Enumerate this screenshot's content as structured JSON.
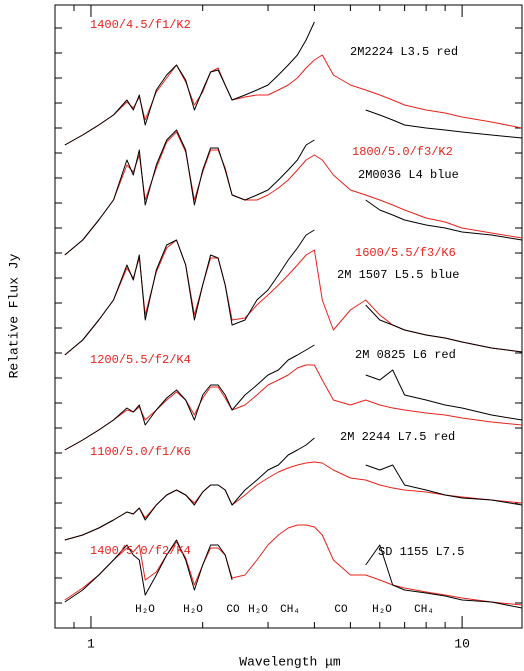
{
  "chart_data": {
    "type": "line",
    "x_label": "Wavelength μm",
    "y_label": "Relative Flux Jy",
    "xscale": "log",
    "xlim": [
      0.8,
      14.5
    ],
    "ylim": [
      0,
      623
    ],
    "xticks": [
      1,
      10
    ],
    "xminorticks": [
      0.8,
      0.9,
      2,
      3,
      4,
      5,
      6,
      7,
      8,
      9
    ],
    "yminorticks": [
      25,
      50,
      75,
      100,
      125,
      150,
      175,
      200,
      225,
      250,
      275,
      300,
      325,
      350,
      375,
      400,
      425,
      450,
      475,
      500,
      525,
      550,
      575,
      600
    ],
    "x": [
      0.85,
      0.95,
      1.05,
      1.15,
      1.25,
      1.3,
      1.35,
      1.4,
      1.5,
      1.6,
      1.7,
      1.8,
      1.9,
      2.0,
      2.1,
      2.2,
      2.3,
      2.4,
      2.6,
      2.8,
      3.0,
      3.2,
      3.4,
      3.6,
      3.8,
      4.0,
      4.2,
      4.5,
      5.0,
      5.5,
      6.0,
      6.5,
      7,
      8,
      9,
      10,
      12,
      14.5
    ],
    "series": [
      {
        "name": "1400/4.5/f1/K2",
        "color": "#e8231b",
        "values": [
          483,
          493,
          503,
          513,
          526,
          520,
          531,
          508,
          536,
          550,
          563,
          546,
          523,
          536,
          556,
          560,
          543,
          528,
          531,
          533,
          533,
          538,
          543,
          550,
          560,
          568,
          573,
          553,
          543,
          538,
          533,
          528,
          523,
          518,
          515,
          511,
          506,
          500
        ]
      },
      {
        "name": "2M2224 L3.5 red",
        "color": "#000000",
        "values": [
          483,
          493,
          503,
          513,
          528,
          518,
          533,
          503,
          538,
          553,
          563,
          548,
          518,
          538,
          556,
          558,
          543,
          528,
          533,
          538,
          543,
          553,
          563,
          573,
          588,
          606,
          null,
          null,
          null,
          518,
          513,
          508,
          503,
          500,
          498,
          496,
          493,
          490
        ]
      },
      {
        "name": "1800/5.0/f3/K2",
        "color": "#e8231b",
        "values": [
          373,
          388,
          408,
          428,
          463,
          456,
          473,
          428,
          460,
          486,
          496,
          476,
          428,
          456,
          478,
          478,
          460,
          433,
          428,
          428,
          433,
          440,
          448,
          458,
          468,
          473,
          468,
          453,
          438,
          433,
          428,
          423,
          418,
          410,
          406,
          400,
          395,
          390
        ]
      },
      {
        "name": "2M0036 L4 blue",
        "color": "#000000",
        "values": [
          373,
          388,
          408,
          428,
          468,
          453,
          478,
          423,
          463,
          488,
          498,
          478,
          423,
          458,
          480,
          480,
          458,
          433,
          428,
          433,
          438,
          448,
          458,
          468,
          483,
          488,
          null,
          null,
          null,
          428,
          418,
          413,
          408,
          403,
          400,
          396,
          393,
          388
        ]
      },
      {
        "name": "1600/5.5/f3/K6",
        "color": "#e8231b",
        "values": [
          273,
          288,
          308,
          328,
          360,
          350,
          370,
          313,
          356,
          380,
          388,
          363,
          313,
          343,
          370,
          370,
          343,
          308,
          310,
          323,
          333,
          343,
          353,
          363,
          373,
          378,
          328,
          298,
          318,
          328,
          313,
          303,
          298,
          293,
          290,
          286,
          280,
          276
        ]
      },
      {
        "name": "2M 1507 L5.5 blue",
        "color": "#000000",
        "values": [
          273,
          288,
          308,
          328,
          363,
          348,
          373,
          308,
          358,
          383,
          388,
          363,
          308,
          343,
          373,
          370,
          343,
          303,
          308,
          328,
          338,
          353,
          368,
          380,
          393,
          398,
          null,
          null,
          null,
          323,
          308,
          303,
          298,
          293,
          290,
          286,
          280,
          276
        ]
      },
      {
        "name": "1200/5.5/f2/K4",
        "color": "#e8231b",
        "values": [
          178,
          188,
          198,
          208,
          218,
          216,
          221,
          208,
          218,
          228,
          236,
          228,
          213,
          230,
          241,
          241,
          230,
          218,
          223,
          233,
          243,
          248,
          253,
          260,
          263,
          263,
          248,
          228,
          223,
          228,
          223,
          220,
          218,
          215,
          213,
          210,
          206,
          203
        ]
      },
      {
        "name": "2M 0825 L6 red",
        "color": "#000000",
        "values": [
          178,
          188,
          198,
          208,
          220,
          216,
          223,
          203,
          218,
          230,
          238,
          228,
          208,
          233,
          243,
          243,
          233,
          218,
          233,
          243,
          253,
          258,
          268,
          273,
          278,
          283,
          null,
          null,
          null,
          253,
          248,
          258,
          233,
          228,
          223,
          220,
          213,
          208
        ]
      },
      {
        "name": "1100/5.0/f1/K6",
        "color": "#e8231b",
        "values": [
          88,
          93,
          100,
          108,
          116,
          114,
          120,
          110,
          123,
          133,
          138,
          133,
          125,
          136,
          143,
          143,
          138,
          123,
          133,
          143,
          150,
          156,
          160,
          163,
          165,
          166,
          165,
          158,
          150,
          148,
          143,
          140,
          138,
          136,
          133,
          131,
          128,
          125
        ]
      },
      {
        "name": "2M 2244 L7.5 red",
        "color": "#000000",
        "values": [
          88,
          93,
          100,
          108,
          116,
          114,
          120,
          108,
          123,
          133,
          138,
          133,
          123,
          136,
          143,
          143,
          138,
          123,
          138,
          148,
          158,
          163,
          173,
          178,
          183,
          190,
          null,
          null,
          null,
          163,
          158,
          163,
          143,
          138,
          133,
          130,
          128,
          123
        ]
      },
      {
        "name": "1400/5.0/f2/K4",
        "color": "#e8231b",
        "values": [
          28,
          40,
          53,
          68,
          80,
          76,
          83,
          48,
          56,
          73,
          86,
          70,
          43,
          63,
          80,
          80,
          73,
          50,
          53,
          68,
          83,
          93,
          100,
          103,
          103,
          101,
          93,
          68,
          53,
          53,
          48,
          43,
          40,
          36,
          33,
          30,
          26,
          23
        ]
      },
      {
        "name": "SD 1155 L7.5",
        "color": "#000000",
        "values": [
          26,
          38,
          53,
          68,
          83,
          73,
          68,
          33,
          53,
          73,
          88,
          68,
          38,
          63,
          83,
          83,
          73,
          48,
          null,
          null,
          null,
          null,
          null,
          null,
          null,
          null,
          null,
          null,
          null,
          63,
          83,
          43,
          38,
          35,
          32,
          28,
          26,
          20
        ]
      }
    ],
    "annotations": [
      "H₂O",
      "H₂O",
      "CO",
      "H₂O",
      "CH₄",
      "CO",
      "H₂O",
      "CH₄"
    ]
  }
}
